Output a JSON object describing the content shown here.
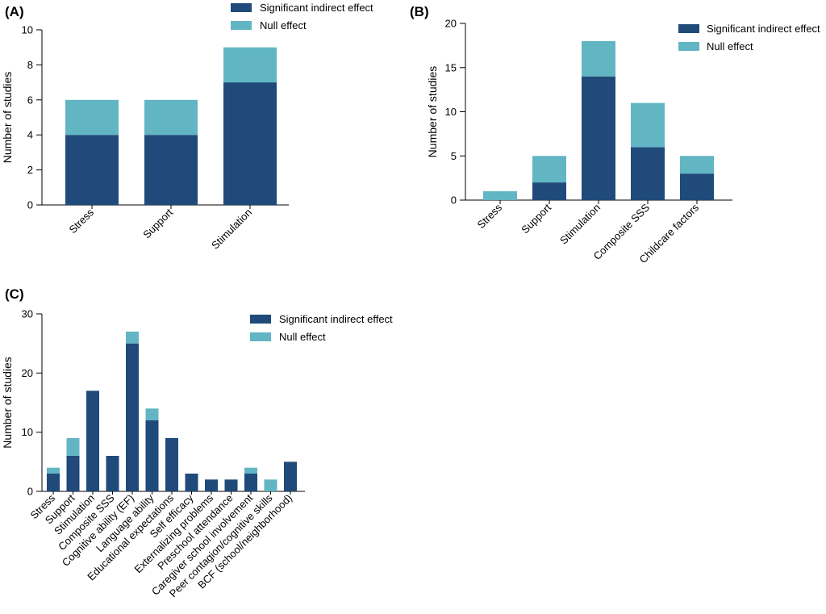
{
  "colors": {
    "significant": "#1f4a7a",
    "null": "#62b6c4",
    "axis": "#000000"
  },
  "chart_data": [
    {
      "panel": "(A)",
      "type": "bar",
      "stacked": true,
      "categories": [
        "Stress",
        "Support",
        "Stimulation"
      ],
      "series": [
        {
          "name": "Significant indirect effect",
          "values": [
            4,
            4,
            7
          ]
        },
        {
          "name": "Null effect",
          "values": [
            2,
            2,
            2
          ]
        }
      ],
      "ylabel": "Number of studies",
      "ylim": [
        0,
        10
      ],
      "yticks": [
        0,
        2,
        4,
        6,
        8,
        10
      ],
      "legend": "top-right"
    },
    {
      "panel": "(B)",
      "type": "bar",
      "stacked": true,
      "categories": [
        "Stress",
        "Support",
        "Stimulation",
        "Composite SSS",
        "Childcare factors"
      ],
      "series": [
        {
          "name": "Significant indirect effect",
          "values": [
            0,
            2,
            14,
            6,
            3
          ]
        },
        {
          "name": "Null effect",
          "values": [
            1,
            3,
            4,
            5,
            2
          ]
        }
      ],
      "ylabel": "Number of studies",
      "ylim": [
        0,
        20
      ],
      "yticks": [
        0,
        5,
        10,
        15,
        20
      ],
      "legend": "top-right"
    },
    {
      "panel": "(C)",
      "type": "bar",
      "stacked": true,
      "categories": [
        "Stress",
        "Support",
        "Stimulation",
        "Composite SSS",
        "Cognitive ability (EF)",
        "Language ability",
        "Educational expectations",
        "Self efficacy",
        "Externalizing problems",
        "Preschool attendance",
        "Caregiver school involvement",
        "Peer contagion/cognitive skills",
        "BCF (school/neighborhood)"
      ],
      "series": [
        {
          "name": "Significant indirect effect",
          "values": [
            3,
            6,
            17,
            6,
            25,
            12,
            9,
            3,
            2,
            2,
            3,
            0,
            5
          ]
        },
        {
          "name": "Null effect",
          "values": [
            1,
            3,
            0,
            0,
            2,
            2,
            0,
            0,
            0,
            0,
            1,
            2,
            0
          ]
        }
      ],
      "ylabel": "Number of studies",
      "ylim": [
        0,
        30
      ],
      "yticks": [
        0,
        10,
        20,
        30
      ],
      "legend": "top-right"
    }
  ]
}
